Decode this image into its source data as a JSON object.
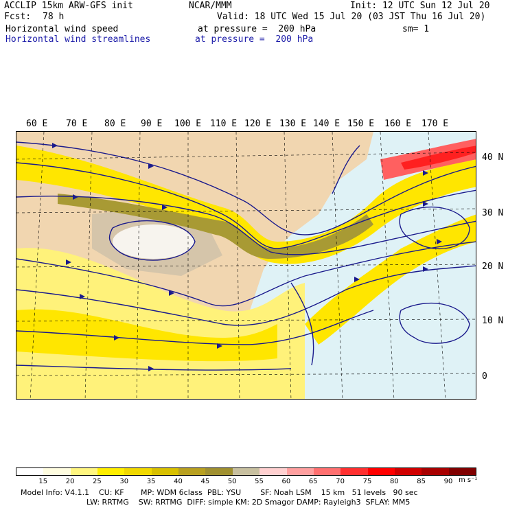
{
  "header": {
    "model": "ACCLIP 15km ARW-GFS init",
    "org": "NCAR/MMM",
    "init": "Init: 12 UTC Sun 12 Jul 20",
    "fcst_label": "Fcst:",
    "fcst_value": "78 h",
    "valid": "Valid: 18 UTC Wed 15 Jul 20 (03 JST Thu 16 Jul 20)",
    "field1_name": "Horizontal wind speed",
    "field1_level": "at pressure =  200 hPa",
    "field1_smooth": "sm= 1",
    "field2_name": "Horizontal wind streamlines",
    "field2_level": "at pressure =  200 hPa"
  },
  "map": {
    "lon_labels": [
      "60 E",
      "70 E",
      "80 E",
      "90 E",
      "100 E",
      "110 E",
      "120 E",
      "130 E",
      "140 E",
      "150 E",
      "160 E",
      "170 E"
    ],
    "lat_labels": [
      "40 N",
      "30 N",
      "20 N",
      "10 N",
      "0"
    ]
  },
  "colorbar": {
    "labels": [
      "15",
      "20",
      "25",
      "30",
      "35",
      "40",
      "45",
      "50",
      "55",
      "60",
      "65",
      "70",
      "75",
      "80",
      "85",
      "90"
    ],
    "units": "m s⁻¹",
    "colors": [
      "#ffffff",
      "#fffde0",
      "#fff680",
      "#ffee00",
      "#f0d800",
      "#d8c000",
      "#b8a020",
      "#a09030",
      "#c8c0a0",
      "#ffd0d0",
      "#ffa0a0",
      "#ff7070",
      "#ff3030",
      "#ff0000",
      "#d00000",
      "#a80000",
      "#800000"
    ]
  },
  "footer": {
    "line1": "Model Info: V4.1.1    CU: KF       MP: WDM 6class  PBL: YSU        SF: Noah LSM    15 km   51 levels   90 sec",
    "line2": "LW: RRTMG    SW: RRTMG  DIFF: simple KM: 2D Smagor DAMP: Rayleigh3  SFLAY: MM5"
  }
}
